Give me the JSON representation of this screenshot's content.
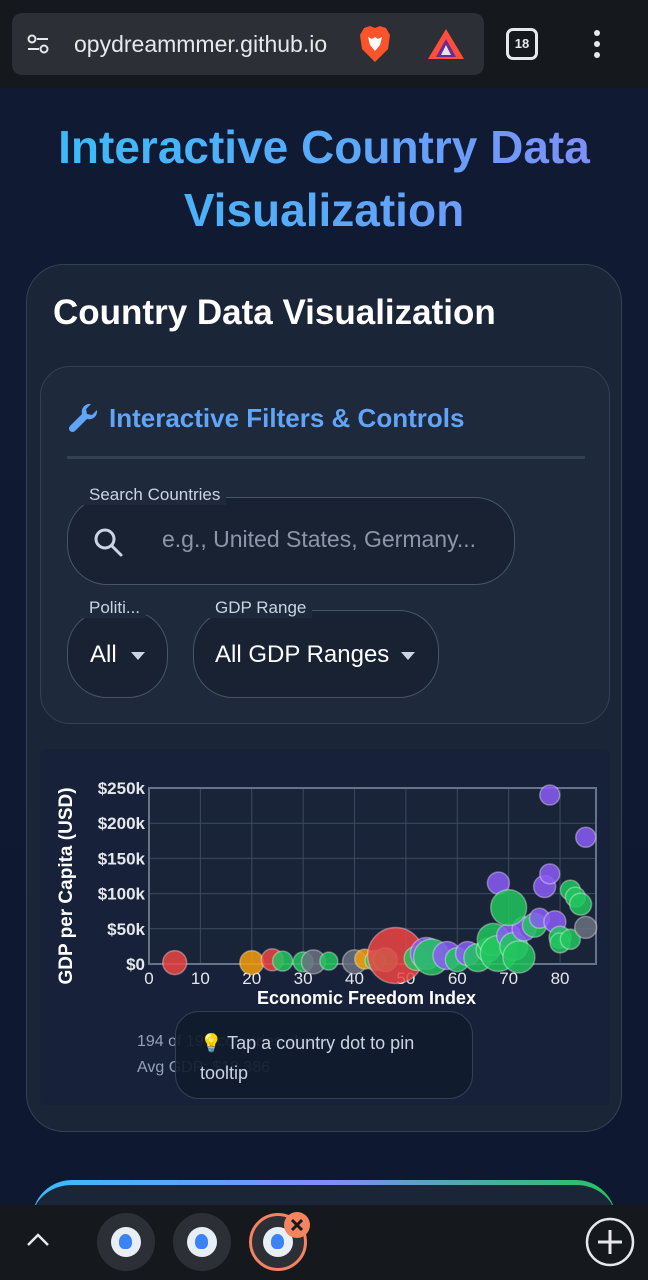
{
  "browser": {
    "url": "opydreammmer.github.io",
    "tab_count": "18",
    "icons": [
      "tune-icon",
      "brave-lion-icon",
      "brave-rewards-icon",
      "tabs-icon",
      "more-vertical-icon",
      "chevron-up-icon",
      "add-tab-icon",
      "close-tab-icon"
    ]
  },
  "page": {
    "title": "Interactive Country Data Visualization",
    "card_title": "Country Data Visualization",
    "filters": {
      "heading": "Interactive Filters & Controls",
      "search_label": "Search Countries",
      "search_placeholder": "e.g., United States, Germany...",
      "political_label": "Politi...",
      "political_value": "All",
      "gdp_label": "GDP Range",
      "gdp_value": "All GDP Ranges"
    },
    "stats": {
      "line1": "194 of 194 countries shown",
      "line2": "Avg GDP: $18,386"
    },
    "tooltip": "💡 Tap a country dot to pin tooltip"
  },
  "colors": {
    "accent": "#60a5fa",
    "red": "#ef4444",
    "orange": "#f59e0b",
    "green": "#22c55e",
    "purple": "#8b5cf6",
    "gray": "#6b7280"
  },
  "chart_data": {
    "type": "scatter",
    "xlabel": "Economic Freedom Index",
    "ylabel": "GDP per Capita (USD)",
    "xlim": [
      0,
      87
    ],
    "ylim": [
      0,
      250000
    ],
    "x_ticks": [
      "0",
      "10",
      "20",
      "30",
      "40",
      "50",
      "60",
      "70",
      "80"
    ],
    "y_ticks": [
      "$0",
      "$50k",
      "$100k",
      "$150k",
      "$200k",
      "$250k"
    ],
    "grid": true,
    "points": [
      {
        "x": 5,
        "y": 2000,
        "r": 12,
        "c": "red"
      },
      {
        "x": 20,
        "y": 2000,
        "r": 12,
        "c": "orange"
      },
      {
        "x": 24,
        "y": 6000,
        "r": 11,
        "c": "red"
      },
      {
        "x": 26,
        "y": 4000,
        "r": 10,
        "c": "green"
      },
      {
        "x": 30,
        "y": 3000,
        "r": 10,
        "c": "green"
      },
      {
        "x": 32,
        "y": 3000,
        "r": 12,
        "c": "gray"
      },
      {
        "x": 35,
        "y": 4000,
        "r": 9,
        "c": "green"
      },
      {
        "x": 40,
        "y": 3000,
        "r": 12,
        "c": "gray"
      },
      {
        "x": 42,
        "y": 7000,
        "r": 10,
        "c": "orange"
      },
      {
        "x": 44,
        "y": 5000,
        "r": 10,
        "c": "green"
      },
      {
        "x": 46,
        "y": 6000,
        "r": 12,
        "c": "green"
      },
      {
        "x": 48,
        "y": 12000,
        "r": 28,
        "c": "red"
      },
      {
        "x": 52,
        "y": 8000,
        "r": 12,
        "c": "green"
      },
      {
        "x": 54,
        "y": 15000,
        "r": 16,
        "c": "purple"
      },
      {
        "x": 55,
        "y": 10000,
        "r": 18,
        "c": "green"
      },
      {
        "x": 58,
        "y": 12000,
        "r": 14,
        "c": "purple"
      },
      {
        "x": 60,
        "y": 6000,
        "r": 12,
        "c": "green"
      },
      {
        "x": 62,
        "y": 15000,
        "r": 12,
        "c": "purple"
      },
      {
        "x": 64,
        "y": 9000,
        "r": 14,
        "c": "green"
      },
      {
        "x": 66,
        "y": 20000,
        "r": 12,
        "c": "green"
      },
      {
        "x": 67,
        "y": 35000,
        "r": 16,
        "c": "green"
      },
      {
        "x": 68,
        "y": 15000,
        "r": 18,
        "c": "green"
      },
      {
        "x": 70,
        "y": 40000,
        "r": 12,
        "c": "purple"
      },
      {
        "x": 71,
        "y": 25000,
        "r": 14,
        "c": "green"
      },
      {
        "x": 72,
        "y": 10000,
        "r": 16,
        "c": "green"
      },
      {
        "x": 73,
        "y": 50000,
        "r": 12,
        "c": "purple"
      },
      {
        "x": 68,
        "y": 115000,
        "r": 11,
        "c": "purple"
      },
      {
        "x": 70,
        "y": 80000,
        "r": 18,
        "c": "green"
      },
      {
        "x": 75,
        "y": 55000,
        "r": 12,
        "c": "green"
      },
      {
        "x": 76,
        "y": 65000,
        "r": 10,
        "c": "purple"
      },
      {
        "x": 77,
        "y": 110000,
        "r": 11,
        "c": "purple"
      },
      {
        "x": 78,
        "y": 128000,
        "r": 10,
        "c": "purple"
      },
      {
        "x": 78,
        "y": 240000,
        "r": 10,
        "c": "purple"
      },
      {
        "x": 79,
        "y": 60000,
        "r": 11,
        "c": "purple"
      },
      {
        "x": 80,
        "y": 38000,
        "r": 11,
        "c": "green"
      },
      {
        "x": 80,
        "y": 30000,
        "r": 10,
        "c": "green"
      },
      {
        "x": 82,
        "y": 35000,
        "r": 10,
        "c": "green"
      },
      {
        "x": 82,
        "y": 105000,
        "r": 10,
        "c": "green"
      },
      {
        "x": 83,
        "y": 95000,
        "r": 10,
        "c": "green"
      },
      {
        "x": 84,
        "y": 85000,
        "r": 11,
        "c": "green"
      },
      {
        "x": 85,
        "y": 180000,
        "r": 10,
        "c": "purple"
      },
      {
        "x": 85,
        "y": 52000,
        "r": 11,
        "c": "gray"
      }
    ]
  }
}
